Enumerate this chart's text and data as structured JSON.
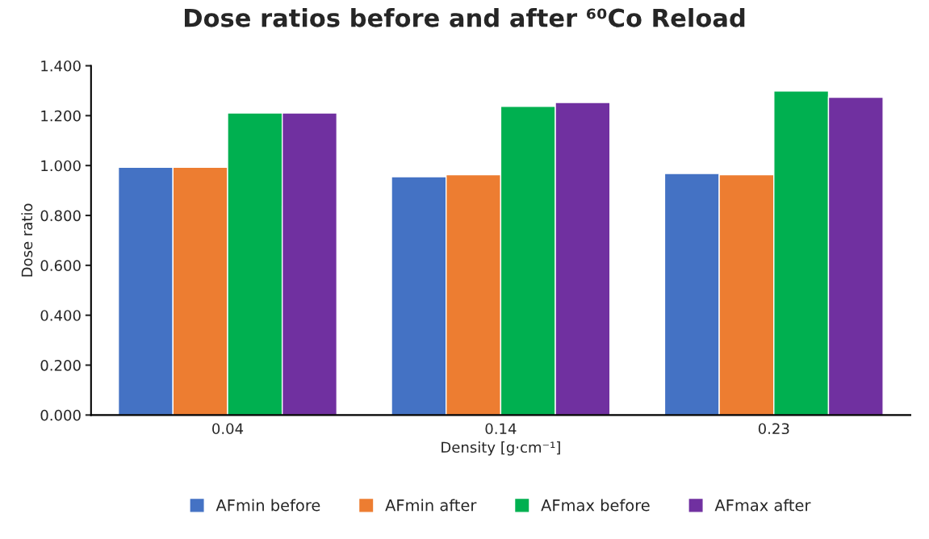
{
  "chart_data": {
    "type": "bar",
    "title": "Dose ratios before and after ⁶⁰Co Reload",
    "xlabel": "Density [g·cm⁻¹]",
    "ylabel": "Dose ratio",
    "categories": [
      "0.04",
      "0.14",
      "0.23"
    ],
    "series": [
      {
        "name": "AFmin before",
        "color": "#4472c4",
        "values": [
          0.993,
          0.955,
          0.968
        ]
      },
      {
        "name": "AFmin after",
        "color": "#ed7d31",
        "values": [
          0.993,
          0.963,
          0.963
        ]
      },
      {
        "name": "AFmax before",
        "color": "#00b050",
        "values": [
          1.211,
          1.237,
          1.299
        ]
      },
      {
        "name": "AFmax after",
        "color": "#7030a0",
        "values": [
          1.211,
          1.253,
          1.274
        ]
      }
    ],
    "ylim": [
      0,
      1.4
    ],
    "yticks": [
      {
        "value": 0,
        "label": "0.000"
      },
      {
        "value": 0.2,
        "label": "0.200"
      },
      {
        "value": 0.4,
        "label": "0.400"
      },
      {
        "value": 0.6,
        "label": "0.600"
      },
      {
        "value": 0.8,
        "label": "0.800"
      },
      {
        "value": 1.0,
        "label": "1.000"
      },
      {
        "value": 1.2,
        "label": "1.200"
      },
      {
        "value": 1.4,
        "label": "1.400"
      }
    ],
    "grid": false,
    "legend": "bottom"
  }
}
